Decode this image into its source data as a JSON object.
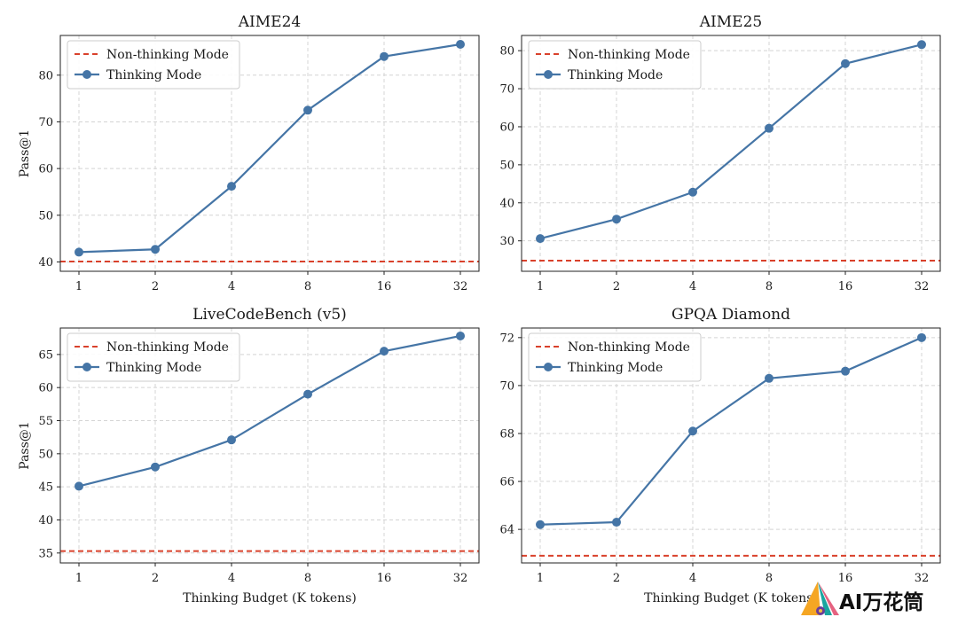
{
  "chart_data": [
    {
      "type": "line",
      "title": "AIME24",
      "ylabel": "Pass@1",
      "xlabel": "",
      "x": [
        "1",
        "2",
        "4",
        "8",
        "16",
        "32"
      ],
      "ylim": [
        38,
        88.5
      ],
      "yticks": [
        40,
        50,
        60,
        70,
        80
      ],
      "grid": true,
      "legend": "top-left",
      "series": [
        {
          "name": "Thinking Mode",
          "values": [
            42.1,
            42.7,
            56.2,
            72.5,
            84.0,
            86.6
          ],
          "color": "#4575a6",
          "style": "solid-marker"
        }
      ],
      "baseline": {
        "name": "Non-thinking Mode",
        "value": 40.1,
        "color": "#d9412b",
        "style": "dashed"
      }
    },
    {
      "type": "line",
      "title": "AIME25",
      "ylabel": "",
      "xlabel": "",
      "x": [
        "1",
        "2",
        "4",
        "8",
        "16",
        "32"
      ],
      "ylim": [
        22,
        84
      ],
      "yticks": [
        30,
        40,
        50,
        60,
        70,
        80
      ],
      "grid": true,
      "legend": "top-left",
      "series": [
        {
          "name": "Thinking Mode",
          "values": [
            30.6,
            35.7,
            42.8,
            59.6,
            76.6,
            81.6
          ],
          "color": "#4575a6",
          "style": "solid-marker"
        }
      ],
      "baseline": {
        "name": "Non-thinking Mode",
        "value": 24.8,
        "color": "#d9412b",
        "style": "dashed"
      }
    },
    {
      "type": "line",
      "title": "LiveCodeBench (v5)",
      "ylabel": "Pass@1",
      "xlabel": "Thinking Budget (K tokens)",
      "x": [
        "1",
        "2",
        "4",
        "8",
        "16",
        "32"
      ],
      "ylim": [
        33.5,
        69
      ],
      "yticks": [
        35,
        40,
        45,
        50,
        55,
        60,
        65
      ],
      "grid": true,
      "legend": "top-left",
      "series": [
        {
          "name": "Thinking Mode",
          "values": [
            45.1,
            48.0,
            52.1,
            59.0,
            65.5,
            67.8
          ],
          "color": "#4575a6",
          "style": "solid-marker"
        }
      ],
      "baseline": {
        "name": "Non-thinking Mode",
        "value": 35.3,
        "color": "#d9412b",
        "style": "dashed"
      }
    },
    {
      "type": "line",
      "title": "GPQA Diamond",
      "ylabel": "",
      "xlabel": "Thinking Budget (K tokens)",
      "x": [
        "1",
        "2",
        "4",
        "8",
        "16",
        "32"
      ],
      "ylim": [
        62.6,
        72.4
      ],
      "yticks": [
        64,
        66,
        68,
        70,
        72
      ],
      "grid": true,
      "legend": "top-left",
      "series": [
        {
          "name": "Thinking Mode",
          "values": [
            64.2,
            64.3,
            68.1,
            70.3,
            70.6,
            72.0
          ],
          "color": "#4575a6",
          "style": "solid-marker"
        }
      ],
      "baseline": {
        "name": "Non-thinking Mode",
        "value": 62.9,
        "color": "#d9412b",
        "style": "dashed"
      }
    }
  ],
  "watermark": {
    "text": "AI万花筒",
    "icon": "colorful-sail-logo-icon"
  }
}
